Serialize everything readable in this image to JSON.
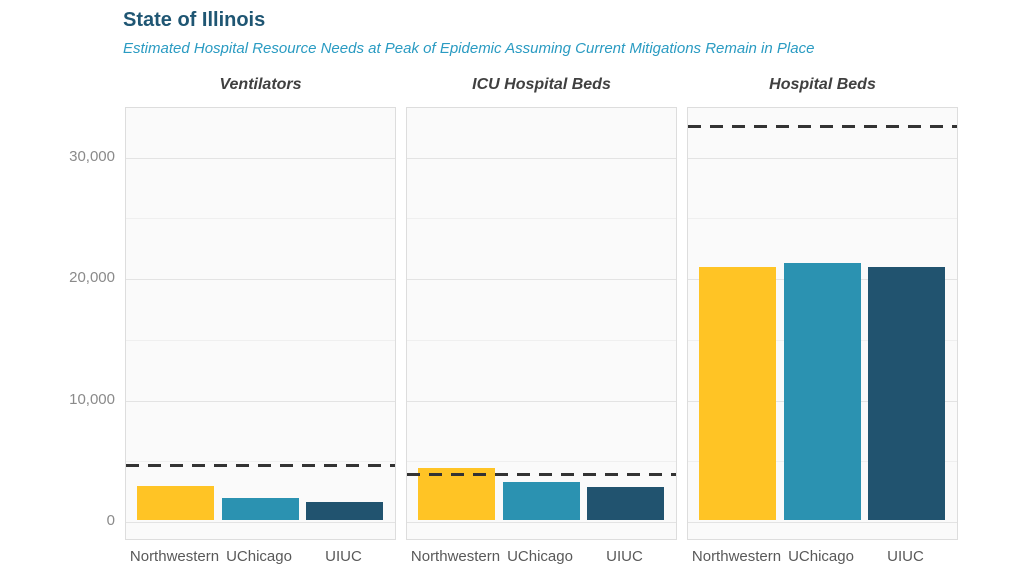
{
  "chart_data": {
    "type": "bar",
    "title": "State of Illinois",
    "subtitle": "Estimated Hospital Resource Needs at Peak of Epidemic Assuming Current Mitigations Remain in Place",
    "categories": [
      "Northwestern",
      "UChicago",
      "UIUC"
    ],
    "facets": [
      {
        "label": "Ventilators",
        "values": [
          2800,
          1800,
          1500
        ],
        "capacity_line": 4500
      },
      {
        "label": "ICU Hospital Beds",
        "values": [
          4300,
          3150,
          2700
        ],
        "capacity_line": 3750
      },
      {
        "label": "Hospital Beds",
        "values": [
          20800,
          21200,
          20800
        ],
        "capacity_line": 32400
      }
    ],
    "xlabel": "",
    "ylabel": "",
    "yticks": [
      0,
      10000,
      20000,
      30000
    ],
    "ytick_labels": [
      "0",
      "10,000",
      "20,000",
      "30,000"
    ],
    "minor_yticks": [
      5000,
      15000,
      25000
    ],
    "ylim": [
      0,
      34100
    ],
    "grid": true,
    "legend": false,
    "capacity_line_style": "dashed"
  },
  "colors": {
    "title": "#1f5673",
    "subtitle": "#2a9bc2",
    "facet_title": "#404040",
    "axis_tick_text": "#8a8a8a",
    "x_label_text": "#595959",
    "bars": [
      "#ffc425",
      "#2b92b1",
      "#21536f"
    ],
    "capacity_line": "#333333"
  }
}
